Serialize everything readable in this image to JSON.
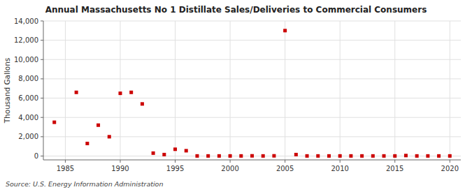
{
  "chart_data": {
    "type": "scatter",
    "title": "Annual Massachusetts No 1 Distillate Sales/Deliveries to Commercial Consumers",
    "y_label": "Thousand Gallons",
    "annotations": [
      "Source: U.S. Energy Information Administration"
    ],
    "x": [
      1984,
      1986,
      1987,
      1988,
      1989,
      1990,
      1991,
      1992,
      1993,
      1994,
      1995,
      1996,
      1997,
      1998,
      1999,
      2000,
      2001,
      2002,
      2003,
      2004,
      2005,
      2006,
      2007,
      2008,
      2009,
      2010,
      2011,
      2012,
      2013,
      2014,
      2015,
      2016,
      2017,
      2018,
      2019,
      2020
    ],
    "values": [
      3500,
      6600,
      1300,
      3200,
      2000,
      6500,
      6600,
      5400,
      300,
      150,
      700,
      550,
      10,
      10,
      10,
      10,
      10,
      20,
      10,
      20,
      13000,
      150,
      10,
      10,
      10,
      10,
      10,
      10,
      10,
      10,
      10,
      50,
      10,
      10,
      10,
      10
    ],
    "color": "#cc0000",
    "marker": "square",
    "xlim": [
      1983,
      2021
    ],
    "ylim": [
      -400,
      14000
    ],
    "xticks": [
      1985,
      1990,
      1995,
      2000,
      2005,
      2010,
      2015,
      2020
    ],
    "yticks": [
      0,
      {
        "value": 2000,
        "label": "2,000"
      },
      {
        "value": 4000,
        "label": "4,000"
      },
      {
        "value": 6000,
        "label": "6,000"
      },
      {
        "value": 8000,
        "label": "8,000"
      },
      {
        "value": 10000,
        "label": "10,000"
      },
      {
        "value": 12000,
        "label": "12,000"
      },
      {
        "value": 14000,
        "label": "14,000"
      }
    ],
    "grid": true
  }
}
